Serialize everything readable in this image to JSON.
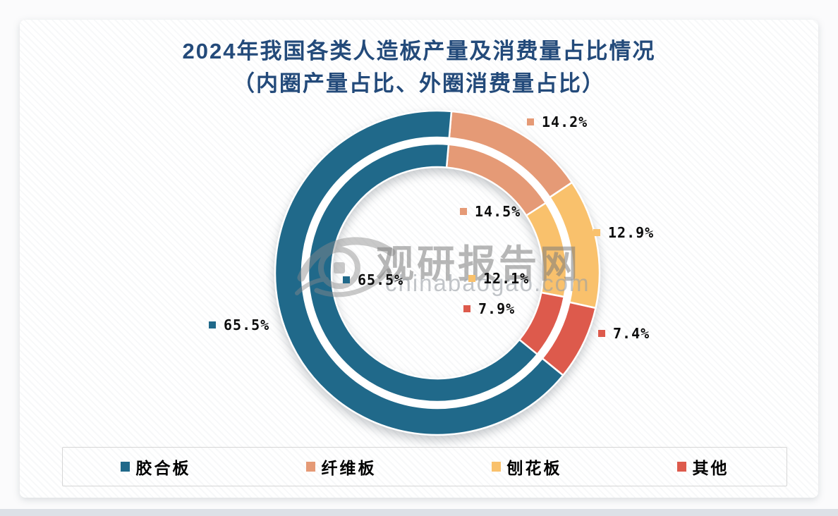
{
  "watermark": {
    "brand": "观研报告网",
    "domain": "chinabaogao.com"
  },
  "chart_data": {
    "type": "pie",
    "variant": "double-ring-donut",
    "title": "2024年我国各类人造板产量及消费量占比情况",
    "subtitle": "（内圈产量占比、外圈消费量占比）",
    "categories": [
      "胶合板",
      "纤维板",
      "刨花板",
      "其他"
    ],
    "series": [
      {
        "name": "产量占比（内圈）",
        "ring": "inner",
        "values": [
          65.5,
          14.5,
          12.1,
          7.9
        ]
      },
      {
        "name": "消费量占比（外圈）",
        "ring": "outer",
        "values": [
          65.5,
          14.2,
          12.9,
          7.4
        ]
      }
    ],
    "unit": "%",
    "colors": [
      "#20698a",
      "#e59a76",
      "#f9c16c",
      "#dd5a4c"
    ],
    "title_color": "#234a7a",
    "legend_position": "bottom",
    "label_format": "value%"
  }
}
